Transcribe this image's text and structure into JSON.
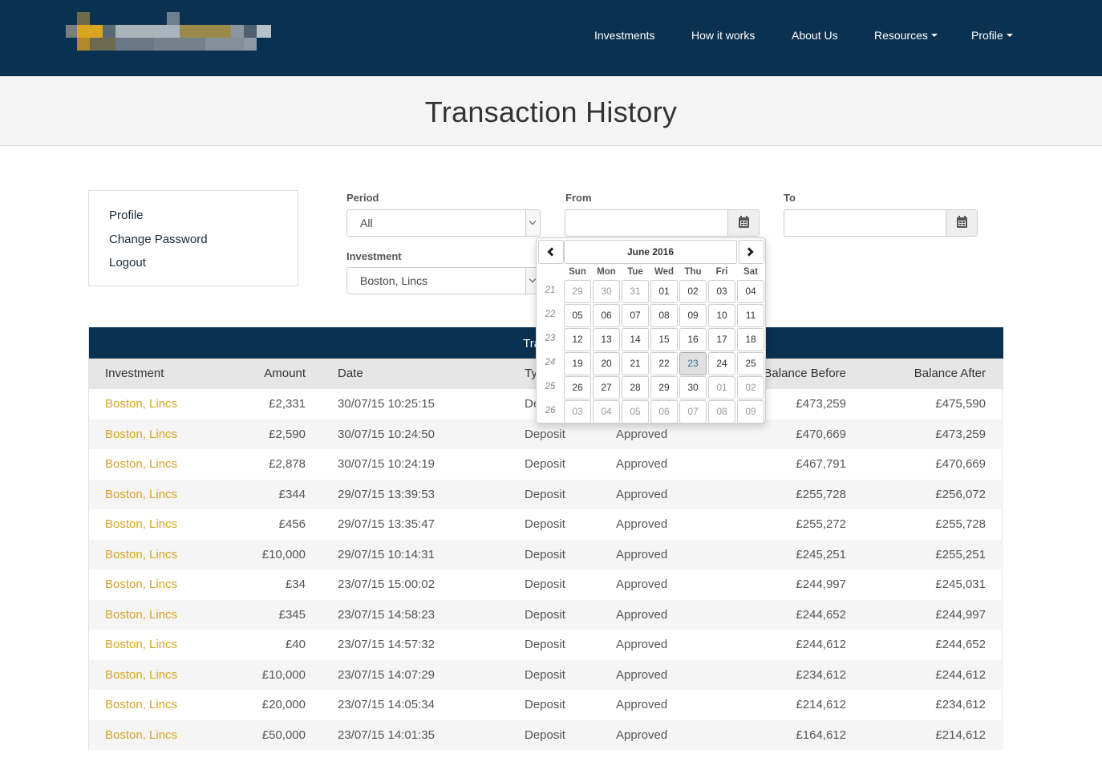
{
  "brand": {
    "logo_icon": "pixelated-logo",
    "colors": {
      "navy": "#0b3150",
      "gold": "#d9a21f"
    }
  },
  "nav": {
    "items": [
      {
        "label": "Investments"
      },
      {
        "label": "How it works"
      },
      {
        "label": "About Us"
      },
      {
        "label": "Resources",
        "dropdown": true
      },
      {
        "label": "Profile",
        "dropdown": true
      }
    ]
  },
  "page": {
    "title": "Transaction History"
  },
  "side_menu": {
    "items": [
      "Profile",
      "Change Password",
      "Logout"
    ]
  },
  "filters": {
    "period": {
      "label": "Period",
      "value": "All"
    },
    "from": {
      "label": "From",
      "value": ""
    },
    "to": {
      "label": "To",
      "value": ""
    },
    "investment": {
      "label": "Investment",
      "value": "Boston, Lincs"
    }
  },
  "datepicker": {
    "month_label": "June 2016",
    "days_of_week": [
      "Sun",
      "Mon",
      "Tue",
      "Wed",
      "Thu",
      "Fri",
      "Sat"
    ],
    "weeks": [
      {
        "num": "21",
        "days": [
          [
            "29",
            1
          ],
          [
            "30",
            1
          ],
          [
            "31",
            1
          ],
          [
            "01",
            0
          ],
          [
            "02",
            0
          ],
          [
            "03",
            0
          ],
          [
            "04",
            0
          ]
        ]
      },
      {
        "num": "22",
        "days": [
          [
            "05",
            0
          ],
          [
            "06",
            0
          ],
          [
            "07",
            0
          ],
          [
            "08",
            0
          ],
          [
            "09",
            0
          ],
          [
            "10",
            0
          ],
          [
            "11",
            0
          ]
        ]
      },
      {
        "num": "23",
        "days": [
          [
            "12",
            0
          ],
          [
            "13",
            0
          ],
          [
            "14",
            0
          ],
          [
            "15",
            0
          ],
          [
            "16",
            0
          ],
          [
            "17",
            0
          ],
          [
            "18",
            0
          ]
        ]
      },
      {
        "num": "24",
        "days": [
          [
            "19",
            0
          ],
          [
            "20",
            0
          ],
          [
            "21",
            0
          ],
          [
            "22",
            0
          ],
          [
            "23",
            2
          ],
          [
            "24",
            0
          ],
          [
            "25",
            0
          ]
        ]
      },
      {
        "num": "25",
        "days": [
          [
            "26",
            0
          ],
          [
            "27",
            0
          ],
          [
            "28",
            0
          ],
          [
            "29",
            0
          ],
          [
            "30",
            0
          ],
          [
            "01",
            1
          ],
          [
            "02",
            1
          ]
        ]
      },
      {
        "num": "26",
        "days": [
          [
            "03",
            1
          ],
          [
            "04",
            1
          ],
          [
            "05",
            1
          ],
          [
            "06",
            1
          ],
          [
            "07",
            1
          ],
          [
            "08",
            1
          ],
          [
            "09",
            1
          ]
        ]
      }
    ]
  },
  "table": {
    "title": "Transact",
    "columns": {
      "investment": "Investment",
      "amount": "Amount",
      "date": "Date",
      "type": "Ty",
      "status": "",
      "balance_before": "Balance Before",
      "balance_after": "Balance After"
    },
    "rows": [
      {
        "investment": "Boston, Lincs",
        "amount": "£2,331",
        "date": "30/07/15 10:25:15",
        "type": "De",
        "status": "",
        "balance_before": "£473,259",
        "balance_after": "£475,590"
      },
      {
        "investment": "Boston, Lincs",
        "amount": "£2,590",
        "date": "30/07/15 10:24:50",
        "type": "Deposit",
        "status": "Approved",
        "balance_before": "£470,669",
        "balance_after": "£473,259"
      },
      {
        "investment": "Boston, Lincs",
        "amount": "£2,878",
        "date": "30/07/15 10:24:19",
        "type": "Deposit",
        "status": "Approved",
        "balance_before": "£467,791",
        "balance_after": "£470,669"
      },
      {
        "investment": "Boston, Lincs",
        "amount": "£344",
        "date": "29/07/15 13:39:53",
        "type": "Deposit",
        "status": "Approved",
        "balance_before": "£255,728",
        "balance_after": "£256,072"
      },
      {
        "investment": "Boston, Lincs",
        "amount": "£456",
        "date": "29/07/15 13:35:47",
        "type": "Deposit",
        "status": "Approved",
        "balance_before": "£255,272",
        "balance_after": "£255,728"
      },
      {
        "investment": "Boston, Lincs",
        "amount": "£10,000",
        "date": "29/07/15 10:14:31",
        "type": "Deposit",
        "status": "Approved",
        "balance_before": "£245,251",
        "balance_after": "£255,251"
      },
      {
        "investment": "Boston, Lincs",
        "amount": "£34",
        "date": "23/07/15 15:00:02",
        "type": "Deposit",
        "status": "Approved",
        "balance_before": "£244,997",
        "balance_after": "£245,031"
      },
      {
        "investment": "Boston, Lincs",
        "amount": "£345",
        "date": "23/07/15 14:58:23",
        "type": "Deposit",
        "status": "Approved",
        "balance_before": "£244,652",
        "balance_after": "£244,997"
      },
      {
        "investment": "Boston, Lincs",
        "amount": "£40",
        "date": "23/07/15 14:57:32",
        "type": "Deposit",
        "status": "Approved",
        "balance_before": "£244,612",
        "balance_after": "£244,652"
      },
      {
        "investment": "Boston, Lincs",
        "amount": "£10,000",
        "date": "23/07/15 14:07:29",
        "type": "Deposit",
        "status": "Approved",
        "balance_before": "£234,612",
        "balance_after": "£244,612"
      },
      {
        "investment": "Boston, Lincs",
        "amount": "£20,000",
        "date": "23/07/15 14:05:34",
        "type": "Deposit",
        "status": "Approved",
        "balance_before": "£214,612",
        "balance_after": "£234,612"
      },
      {
        "investment": "Boston, Lincs",
        "amount": "£50,000",
        "date": "23/07/15 14:01:35",
        "type": "Deposit",
        "status": "Approved",
        "balance_before": "£164,612",
        "balance_after": "£214,612"
      }
    ]
  }
}
